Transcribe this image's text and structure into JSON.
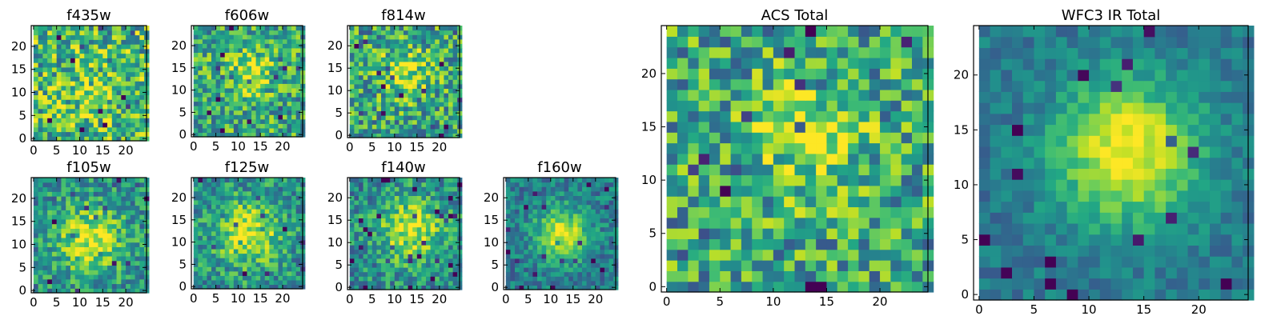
{
  "chart_data": [
    {
      "type": "heatmap",
      "title": "f435w",
      "grid_size": 25,
      "colormap": "viridis",
      "x_ticks": [
        0,
        5,
        10,
        15,
        20
      ],
      "y_ticks": [
        0,
        5,
        10,
        15,
        20
      ],
      "xlim": [
        -0.5,
        24.5
      ],
      "ylim": [
        -0.5,
        24.5
      ],
      "source_center": [
        12,
        9
      ],
      "source_sigma": 4,
      "source_strength": 0.15,
      "noise_level": 0.34,
      "base_level": 0.66,
      "seed": 11
    },
    {
      "type": "heatmap",
      "title": "f606w",
      "grid_size": 25,
      "colormap": "viridis",
      "x_ticks": [
        0,
        5,
        10,
        15,
        20
      ],
      "y_ticks": [
        0,
        5,
        10,
        15,
        20
      ],
      "xlim": [
        -0.5,
        24.5
      ],
      "ylim": [
        -0.5,
        24.5
      ],
      "source_center": [
        12,
        14
      ],
      "source_sigma": 4,
      "source_strength": 0.28,
      "noise_level": 0.3,
      "base_level": 0.6,
      "seed": 23
    },
    {
      "type": "heatmap",
      "title": "f814w",
      "grid_size": 25,
      "colormap": "viridis",
      "x_ticks": [
        0,
        5,
        10,
        15,
        20
      ],
      "y_ticks": [
        0,
        5,
        10,
        15,
        20
      ],
      "xlim": [
        -0.5,
        24.5
      ],
      "ylim": [
        -0.5,
        24.5
      ],
      "source_center": [
        12,
        14
      ],
      "source_sigma": 4,
      "source_strength": 0.32,
      "noise_level": 0.32,
      "base_level": 0.58,
      "seed": 37
    },
    {
      "type": "heatmap",
      "title": "f105w",
      "grid_size": 25,
      "colormap": "viridis",
      "x_ticks": [
        0,
        5,
        10,
        15,
        20
      ],
      "y_ticks": [
        0,
        5,
        10,
        15,
        20
      ],
      "xlim": [
        -0.5,
        24.5
      ],
      "ylim": [
        -0.5,
        24.5
      ],
      "source_center": [
        12,
        11
      ],
      "source_sigma": 5,
      "source_strength": 0.45,
      "noise_level": 0.24,
      "base_level": 0.5,
      "seed": 41
    },
    {
      "type": "heatmap",
      "title": "f125w",
      "grid_size": 25,
      "colormap": "viridis",
      "x_ticks": [
        0,
        5,
        10,
        15,
        20
      ],
      "y_ticks": [
        0,
        5,
        10,
        15,
        20
      ],
      "xlim": [
        -0.5,
        24.5
      ],
      "ylim": [
        -0.5,
        24.5
      ],
      "source_center": [
        12,
        12
      ],
      "source_sigma": 5,
      "source_strength": 0.45,
      "noise_level": 0.24,
      "base_level": 0.5,
      "seed": 53
    },
    {
      "type": "heatmap",
      "title": "f140w",
      "grid_size": 25,
      "colormap": "viridis",
      "x_ticks": [
        0,
        5,
        10,
        15,
        20
      ],
      "y_ticks": [
        0,
        5,
        10,
        15,
        20
      ],
      "xlim": [
        -0.5,
        24.5
      ],
      "ylim": [
        -0.5,
        24.5
      ],
      "source_center": [
        13,
        13
      ],
      "source_sigma": 5,
      "source_strength": 0.45,
      "noise_level": 0.24,
      "base_level": 0.48,
      "seed": 67
    },
    {
      "type": "heatmap",
      "title": "f160w",
      "grid_size": 25,
      "colormap": "viridis",
      "x_ticks": [
        0,
        5,
        10,
        15,
        20
      ],
      "y_ticks": [
        0,
        5,
        10,
        15,
        20
      ],
      "xlim": [
        -0.5,
        24.5
      ],
      "ylim": [
        -0.5,
        24.5
      ],
      "source_center": [
        12,
        12
      ],
      "source_sigma": 4,
      "source_strength": 0.55,
      "noise_level": 0.18,
      "base_level": 0.42,
      "seed": 79
    },
    {
      "type": "heatmap",
      "title": "ACS Total",
      "grid_size": 25,
      "colormap": "viridis",
      "x_ticks": [
        0,
        5,
        10,
        15,
        20
      ],
      "y_ticks": [
        0,
        5,
        10,
        15,
        20
      ],
      "xlim": [
        -0.5,
        24.5
      ],
      "ylim": [
        -0.5,
        24.5
      ],
      "source_center": [
        13,
        14
      ],
      "source_sigma": 4,
      "source_strength": 0.3,
      "noise_level": 0.32,
      "base_level": 0.58,
      "seed": 97
    },
    {
      "type": "heatmap",
      "title": "WFC3 IR Total",
      "grid_size": 25,
      "colormap": "viridis",
      "x_ticks": [
        0,
        5,
        10,
        15,
        20
      ],
      "y_ticks": [
        0,
        5,
        10,
        15,
        20
      ],
      "xlim": [
        -0.5,
        24.5
      ],
      "ylim": [
        -0.5,
        24.5
      ],
      "source_center": [
        13,
        13
      ],
      "source_sigma": 4.5,
      "source_strength": 0.62,
      "noise_level": 0.12,
      "base_level": 0.4,
      "seed": 113
    }
  ]
}
